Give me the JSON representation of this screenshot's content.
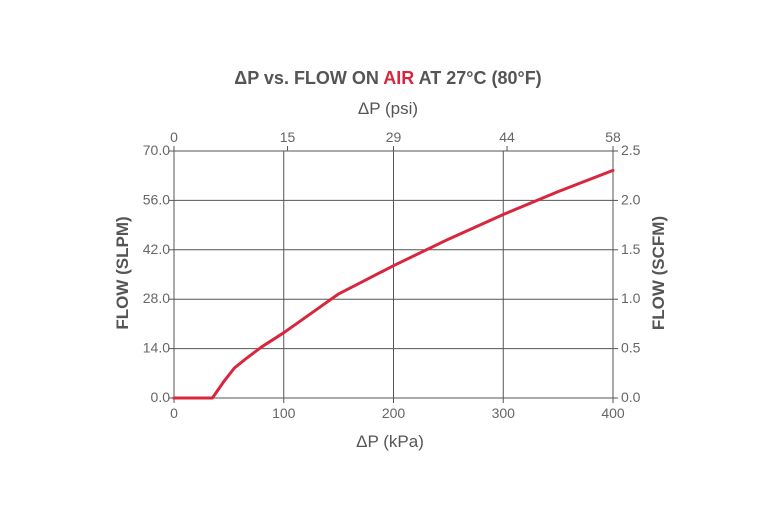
{
  "chart_data": {
    "type": "line",
    "title_parts": [
      {
        "text": "ΔP vs. FLOW ON ",
        "accent": false
      },
      {
        "text": "AIR",
        "accent": true
      },
      {
        "text": " AT 27°C (80°F)",
        "accent": false
      }
    ],
    "top_axis_label": "ΔP (psi)",
    "xlabel": "ΔP (kPa)",
    "ylabel": "FLOW (SLPM)",
    "y2label": "FLOW (SCFM)",
    "xlim": [
      0,
      400
    ],
    "ylim": [
      0,
      70
    ],
    "x_ticks": [
      {
        "value": 0,
        "label": "0"
      },
      {
        "value": 100,
        "label": "100"
      },
      {
        "value": 200,
        "label": "200"
      },
      {
        "value": 300,
        "label": "300"
      },
      {
        "value": 400,
        "label": "400"
      }
    ],
    "top_ticks": [
      {
        "value": 0,
        "label": "0"
      },
      {
        "value": 15,
        "label": "15"
      },
      {
        "value": 29,
        "label": "29"
      },
      {
        "value": 44,
        "label": "44"
      },
      {
        "value": 58,
        "label": "58"
      }
    ],
    "y_ticks": [
      {
        "value": 0,
        "label": "0.0"
      },
      {
        "value": 14,
        "label": "14.0"
      },
      {
        "value": 28,
        "label": "28.0"
      },
      {
        "value": 42,
        "label": "42.0"
      },
      {
        "value": 56,
        "label": "56.0"
      },
      {
        "value": 70,
        "label": "70.0"
      }
    ],
    "y2_ticks": [
      {
        "value": 0,
        "label": "0.0"
      },
      {
        "value": 0.5,
        "label": "0.5"
      },
      {
        "value": 1.0,
        "label": "1.0"
      },
      {
        "value": 1.5,
        "label": "1.5"
      },
      {
        "value": 2.0,
        "label": "2.0"
      },
      {
        "value": 2.5,
        "label": "2.5"
      }
    ],
    "y2lim": [
      0,
      2.5
    ],
    "grid": true,
    "series": [
      {
        "color": "#d7263d",
        "x": [
          0,
          33,
          35,
          45,
          55,
          65,
          80,
          100,
          125,
          150,
          175,
          200,
          250,
          300,
          350,
          400
        ],
        "y": [
          0,
          0,
          0,
          4.5,
          8.5,
          11,
          14.5,
          18.5,
          24,
          29.5,
          33.5,
          37.5,
          45,
          52,
          58.5,
          64.5
        ]
      }
    ],
    "colors": {
      "accent": "#d7263d",
      "text": "#555555",
      "grid": "#555555"
    }
  }
}
